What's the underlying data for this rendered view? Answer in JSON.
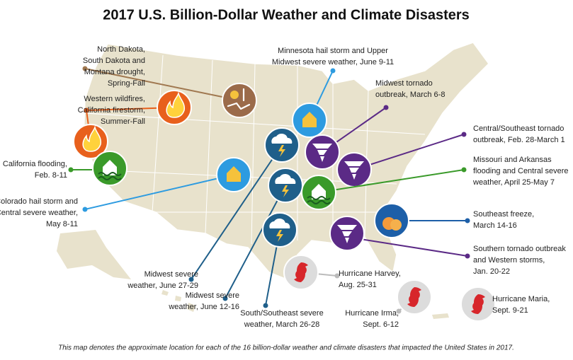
{
  "title": "2017 U.S. Billion-Dollar Weather and Climate Disasters",
  "caption": "This map denotes the approximate location for each of the 16 billion-dollar weather and climate disasters that impacted the United States in 2017.",
  "events": [
    {
      "lines": [
        "North Dakota,",
        "South Dakota and",
        "Montana drought,",
        "Spring-Fall"
      ]
    },
    {
      "lines": [
        "Western wildfires,",
        "California firestorm,",
        "Summer-Fall"
      ]
    },
    {
      "lines": [
        "California flooding,",
        "Feb. 8-11"
      ]
    },
    {
      "lines": [
        "Colorado hail storm and",
        "Central severe weather,",
        "May 8-11"
      ]
    },
    {
      "lines": [
        "Minnesota hail storm and Upper",
        "Midwest severe weather, June 9-11"
      ]
    },
    {
      "lines": [
        "Midwest tornado",
        "outbreak, March 6-8"
      ]
    },
    {
      "lines": [
        "Central/Southeast tornado",
        "outbreak, Feb. 28-March 1"
      ]
    },
    {
      "lines": [
        "Missouri and Arkansas",
        "flooding and Central severe",
        "weather, April 25-May 7"
      ]
    },
    {
      "lines": [
        "Southeast freeze,",
        "March 14-16"
      ]
    },
    {
      "lines": [
        "Southern tornado outbreak",
        "and Western storms,",
        "Jan. 20-22"
      ]
    },
    {
      "lines": [
        "Midwest severe",
        "weather, June 27-29"
      ]
    },
    {
      "lines": [
        "Midwest severe",
        "weather, June 12-16"
      ]
    },
    {
      "lines": [
        "South/Southeast severe",
        "weather, March 26-28"
      ]
    },
    {
      "lines": [
        "Hurricane Harvey,",
        "Aug. 25-31"
      ]
    },
    {
      "lines": [
        "Hurricane Irma,",
        "Sept. 6-12"
      ]
    },
    {
      "lines": [
        "Hurricane Maria,",
        "Sept. 9-21"
      ]
    }
  ]
}
